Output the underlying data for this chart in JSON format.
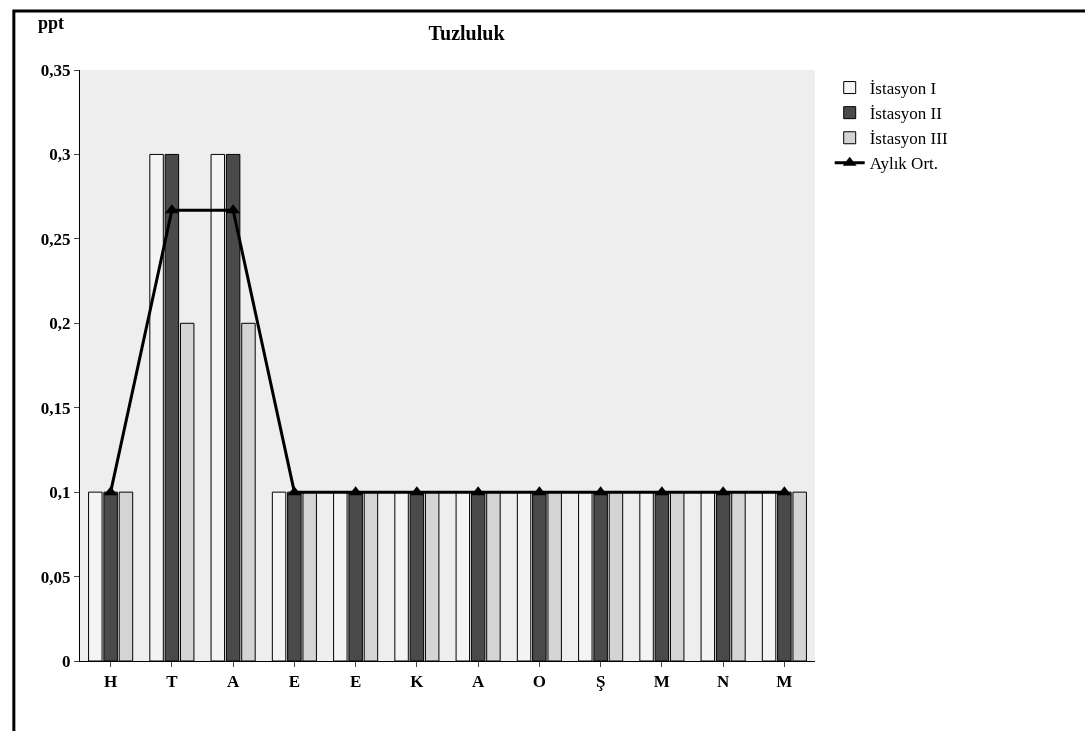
{
  "chart_data": {
    "type": "bar",
    "title": "Tuzluluk",
    "ylabel": "ppt",
    "categories": [
      "H",
      "T",
      "A",
      "E",
      "E",
      "K",
      "A",
      "O",
      "Ş",
      "M",
      "N",
      "M"
    ],
    "series": [
      {
        "name": "İstasyon I",
        "color": "#f4f4f4",
        "values": [
          0.1,
          0.3,
          0.3,
          0.1,
          0.1,
          0.1,
          0.1,
          0.1,
          0.1,
          0.1,
          0.1,
          0.1
        ]
      },
      {
        "name": "İstasyon II",
        "color": "#4a4a4a",
        "values": [
          0.1,
          0.3,
          0.3,
          0.1,
          0.1,
          0.1,
          0.1,
          0.1,
          0.1,
          0.1,
          0.1,
          0.1
        ]
      },
      {
        "name": "İstasyon III",
        "color": "#d4d4d4",
        "values": [
          0.1,
          0.2,
          0.2,
          0.1,
          0.1,
          0.1,
          0.1,
          0.1,
          0.1,
          0.1,
          0.1,
          0.1
        ]
      },
      {
        "name": "Aylık Ort.",
        "type": "line",
        "color": "#000000",
        "marker": "triangle",
        "values": [
          0.1,
          0.267,
          0.267,
          0.1,
          0.1,
          0.1,
          0.1,
          0.1,
          0.1,
          0.1,
          0.1,
          0.1
        ]
      }
    ],
    "ylim": [
      0,
      0.35
    ],
    "yticks": [
      {
        "value": 0,
        "label": "0"
      },
      {
        "value": 0.05,
        "label": "0,05"
      },
      {
        "value": 0.1,
        "label": "0,1"
      },
      {
        "value": 0.15,
        "label": "0,15"
      },
      {
        "value": 0.2,
        "label": "0,2"
      },
      {
        "value": 0.25,
        "label": "0,25"
      },
      {
        "value": 0.3,
        "label": "0,3"
      },
      {
        "value": 0.35,
        "label": "0,35"
      }
    ],
    "grid": false,
    "legend": "right"
  }
}
